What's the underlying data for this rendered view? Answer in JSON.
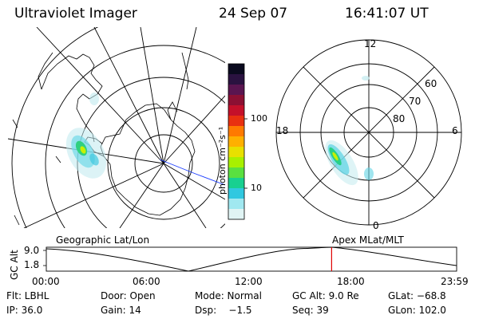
{
  "header": {
    "instrument": "Ultraviolet Imager",
    "date": "24 Sep 07",
    "time": "16:41:07 UT"
  },
  "colorbar": {
    "unit_label": "photon cm⁻²s⁻¹",
    "ticks": [
      "100",
      "10"
    ],
    "colors": [
      "#0a0a1e",
      "#2a1240",
      "#5a1550",
      "#8c1033",
      "#c4102a",
      "#e83010",
      "#ff7a00",
      "#ffb000",
      "#e8e000",
      "#a8f000",
      "#5ae040",
      "#18d090",
      "#30c8e0",
      "#a0e8f0",
      "#e0f4f4"
    ]
  },
  "geo_map": {
    "label": "Geographic Lat/Lon",
    "grid_color": "#000000",
    "terminator_color": "#1a3cff"
  },
  "polar_plot": {
    "label": "Apex MLat/MLT",
    "mlt_labels": {
      "top": "12",
      "left": "18",
      "right": "6",
      "bottom": "0"
    },
    "lat_labels": [
      "60",
      "70",
      "80"
    ]
  },
  "altitude_strip": {
    "axis_title": "GC Alt",
    "y_ticks": [
      "9.0",
      "1.8"
    ],
    "x_ticks": [
      "00:00",
      "06:00",
      "12:00",
      "18:00",
      "23:59"
    ],
    "marker_color": "#e00000",
    "current_time_fraction": 0.6953
  },
  "status": {
    "row1": {
      "filter": "Flt: LBHL",
      "door": "Door: Open",
      "mode": "Mode: Normal",
      "gc_alt": "GC Alt: 9.0 Re",
      "glat": "GLat: −68.8"
    },
    "row2": {
      "ip": "IP: 36.0",
      "gain": "Gain: 14",
      "dsp": "Dsp:    −1.5",
      "seq": "Seq: 39",
      "glon": "GLon: 102.0"
    }
  }
}
